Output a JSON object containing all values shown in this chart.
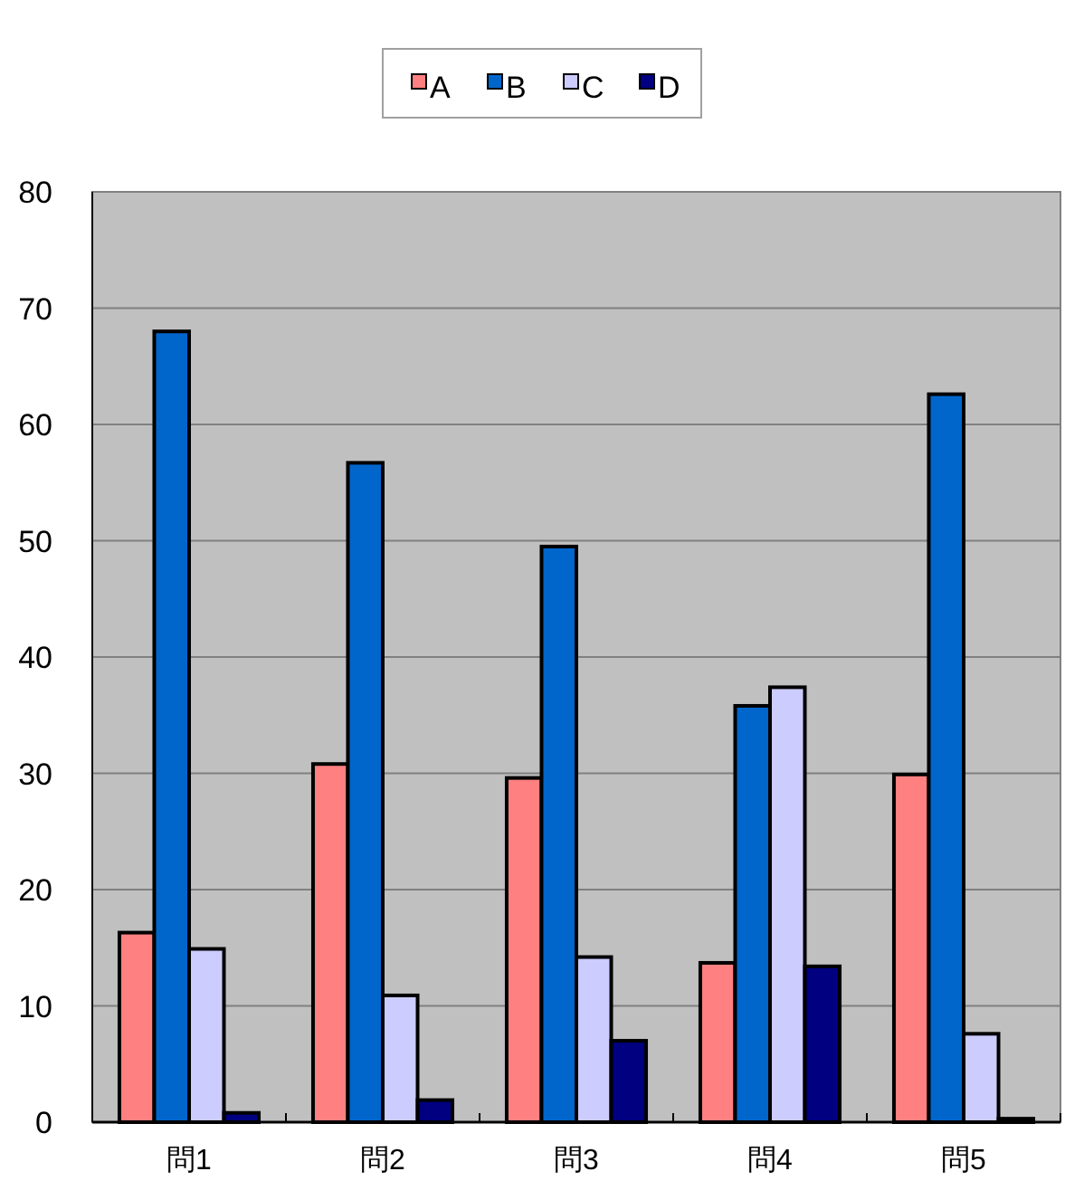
{
  "chart_data": {
    "type": "bar",
    "categories": [
      "問1",
      "問2",
      "問3",
      "問4",
      "問5"
    ],
    "series": [
      {
        "name": "A",
        "color": "#ff8080",
        "values": [
          16.3,
          30.8,
          29.6,
          13.7,
          29.9
        ]
      },
      {
        "name": "B",
        "color": "#0066cc",
        "values": [
          68.0,
          56.7,
          49.5,
          35.8,
          62.6
        ]
      },
      {
        "name": "C",
        "color": "#ccccff",
        "values": [
          14.9,
          10.9,
          14.2,
          37.4,
          7.6
        ]
      },
      {
        "name": "D",
        "color": "#000080",
        "values": [
          0.8,
          1.9,
          7.0,
          13.4,
          0.3
        ]
      }
    ],
    "ylim": [
      0,
      80
    ],
    "yticks": [
      0,
      10,
      20,
      30,
      40,
      50,
      60,
      70,
      80
    ],
    "grid": "y",
    "legend": "top"
  }
}
